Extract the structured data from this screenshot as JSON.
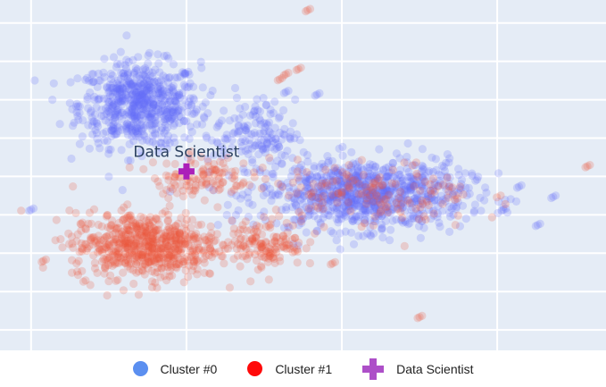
{
  "chart_data": {
    "type": "scatter",
    "title": "",
    "xlabel": "",
    "ylabel": "",
    "grid": true,
    "legend_placement": "bottom-center",
    "xlim": [
      -11,
      8.5
    ],
    "ylim": [
      -6.8,
      6.9
    ],
    "series": [
      {
        "name": "Cluster #0",
        "color": "#636efa",
        "clusters": [
          {
            "center": [
              -6.5,
              2.8
            ],
            "spread": [
              1.35,
              1.15
            ],
            "n": 650
          },
          {
            "center": [
              0.7,
              -0.7
            ],
            "spread": [
              2.3,
              0.95
            ],
            "n": 900
          },
          {
            "center": [
              -2.8,
              1.7
            ],
            "spread": [
              0.9,
              0.9
            ],
            "n": 140
          }
        ],
        "points": [
          [
            -10,
            -1.3
          ],
          [
            -1.8,
            3.3
          ],
          [
            -0.8,
            3.2
          ],
          [
            5.2,
            -1.3
          ],
          [
            6.3,
            -1.9
          ],
          [
            6.8,
            -0.8
          ],
          [
            5.7,
            -0.4
          ],
          [
            -2.1,
            1.1
          ]
        ]
      },
      {
        "name": "Cluster #1",
        "color": "#ef553b",
        "clusters": [
          {
            "center": [
              -6.3,
              -2.7
            ],
            "spread": [
              1.65,
              0.9
            ],
            "n": 650
          },
          {
            "center": [
              -2.4,
              -2.6
            ],
            "spread": [
              0.8,
              0.65
            ],
            "n": 130
          },
          {
            "center": [
              -4.5,
              0.0
            ],
            "spread": [
              1.1,
              0.55
            ],
            "n": 110
          },
          {
            "center": [
              1.0,
              -0.7
            ],
            "spread": [
              2.3,
              0.9
            ],
            "n": 150
          }
        ],
        "points": [
          [
            -1.1,
            6.5
          ],
          [
            -1.4,
            4.2
          ],
          [
            -1.8,
            4.0
          ],
          [
            -2.0,
            3.8
          ],
          [
            7.9,
            0.4
          ],
          [
            2.5,
            -5.5
          ],
          [
            -9.6,
            -3.3
          ],
          [
            -0.3,
            -3.4
          ]
        ]
      },
      {
        "name": "Data Scientist",
        "color": "#ab20b9",
        "points": [
          [
            -5.0,
            0.2
          ]
        ],
        "label": "Data Scientist"
      }
    ]
  },
  "legend": [
    {
      "label": "Cluster #0",
      "color": "#5b8ff0",
      "symbol": "circle"
    },
    {
      "label": "Cluster #1",
      "color": "#ff0a0a",
      "symbol": "circle"
    },
    {
      "label": "Data Scientist",
      "color": "#ad4fc8",
      "symbol": "cross"
    }
  ]
}
